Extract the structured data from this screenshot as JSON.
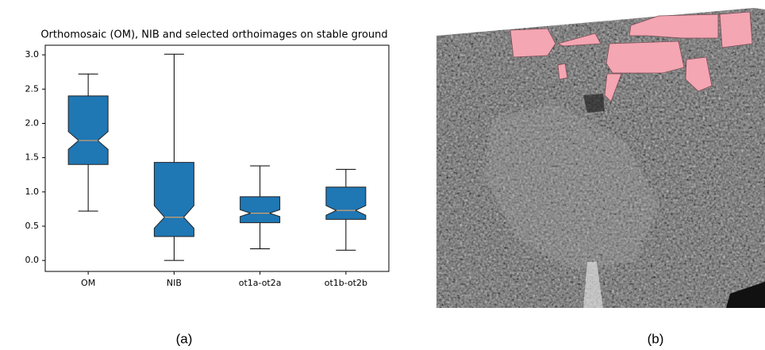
{
  "chart_data": {
    "type": "boxplot",
    "title": "Orthomosaic (OM), NIB and selected orthoimages on stable ground",
    "categories": [
      "OM",
      "NIB",
      "ot1a-ot2a",
      "ot1b-ot2b"
    ],
    "whisker_low": [
      0.72,
      0.0,
      0.17,
      0.15
    ],
    "q1": [
      1.4,
      0.35,
      0.55,
      0.6
    ],
    "notch_low": [
      1.62,
      0.47,
      0.64,
      0.66
    ],
    "median": [
      1.75,
      0.63,
      0.69,
      0.73
    ],
    "notch_high": [
      1.88,
      0.8,
      0.74,
      0.8
    ],
    "q3": [
      2.4,
      1.43,
      0.93,
      1.07
    ],
    "whisker_high": [
      2.72,
      3.01,
      1.38,
      1.33
    ],
    "color": "#1f77b4",
    "median_color": "#d9a066",
    "ylim": [
      -0.16,
      3.14
    ],
    "yticks": [
      {
        "value": 0,
        "label": "0.0"
      },
      0.5,
      {
        "value": 1,
        "label": "1.0"
      },
      1.5,
      {
        "value": 2,
        "label": "2.0"
      },
      2.5,
      {
        "value": 3,
        "label": "3.0"
      }
    ],
    "grid": false
  },
  "captions": [
    "(a)",
    "(b)"
  ]
}
